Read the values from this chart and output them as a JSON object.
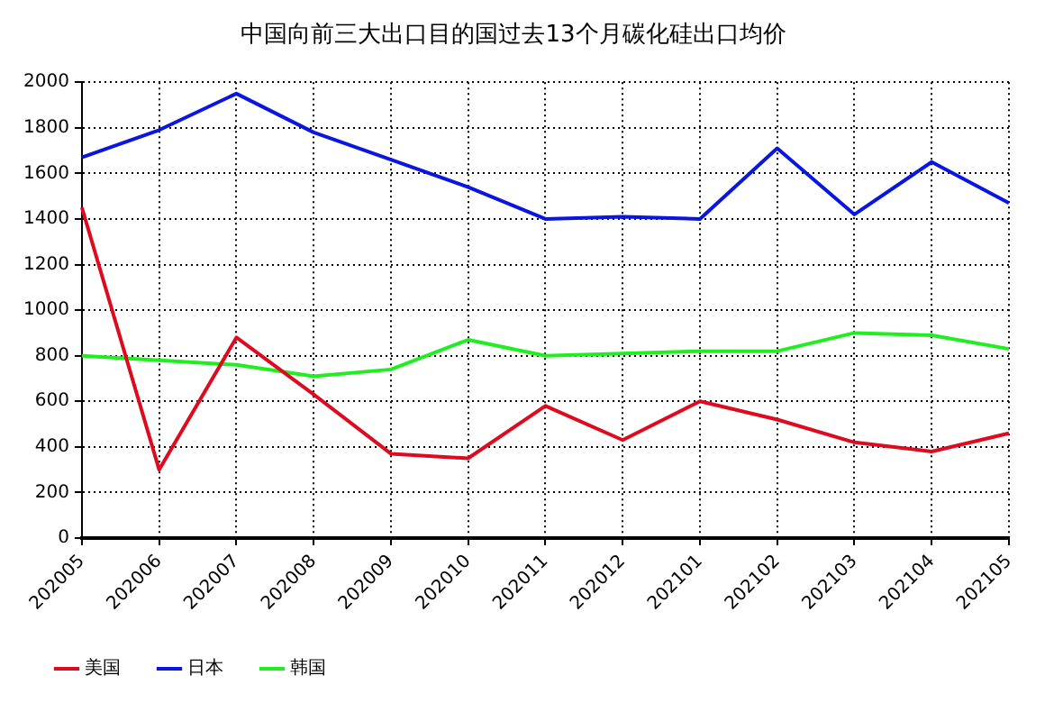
{
  "chart_data": {
    "type": "line",
    "title": "中国向前三大出口目的国过去13个月碳化硅出口均价",
    "categories": [
      "202005",
      "202006",
      "202007",
      "202008",
      "202009",
      "202010",
      "202011",
      "202012",
      "202101",
      "202102",
      "202103",
      "202104",
      "202105"
    ],
    "series": [
      {
        "name": "美国",
        "color": "#dd0b20",
        "values": [
          1450,
          300,
          880,
          630,
          370,
          350,
          580,
          430,
          600,
          520,
          420,
          380,
          460
        ]
      },
      {
        "name": "日本",
        "color": "#0a16e0",
        "values": [
          1670,
          1790,
          1950,
          1780,
          1660,
          1540,
          1400,
          1410,
          1400,
          1710,
          1420,
          1650,
          1470
        ]
      },
      {
        "name": "韩国",
        "color": "#20ee20",
        "values": [
          800,
          780,
          760,
          710,
          740,
          870,
          800,
          810,
          820,
          820,
          900,
          890,
          830
        ]
      }
    ],
    "ylim": [
      0,
      2000
    ],
    "yticks": [
      0,
      200,
      400,
      600,
      800,
      1000,
      1200,
      1400,
      1600,
      1800,
      2000
    ],
    "grid": true,
    "legend": "bottom left",
    "marker": "none",
    "line_style": "solid"
  }
}
